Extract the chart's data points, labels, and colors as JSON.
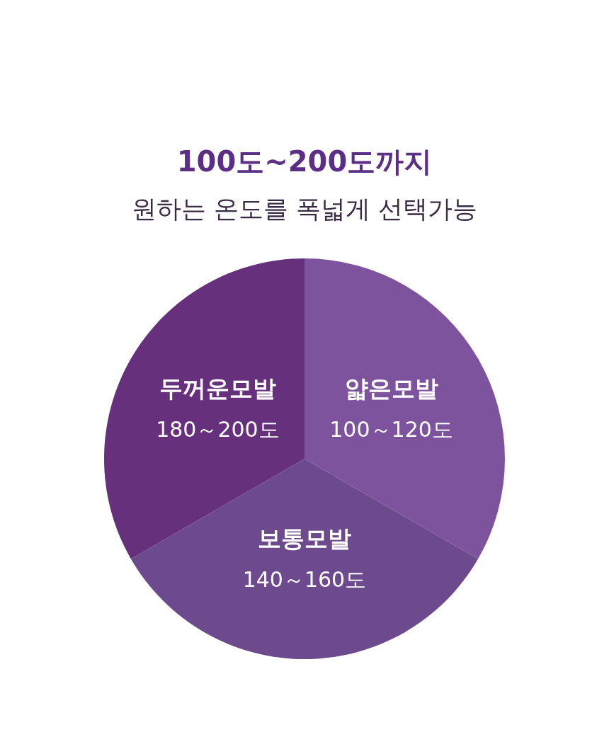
{
  "chart_data": {
    "type": "pie",
    "title": "100도~200도까지",
    "subtitle": "원하는 온도를 폭넓게 선택가능",
    "categories": [
      "얇은모발",
      "보통모발",
      "두꺼운모발"
    ],
    "values": [
      33.34,
      33.33,
      33.33
    ],
    "colors": [
      "#7e539d",
      "#6d4a8d",
      "#66307d"
    ],
    "annotations": [
      "100～120도",
      "140～160도",
      "180～200도"
    ]
  }
}
